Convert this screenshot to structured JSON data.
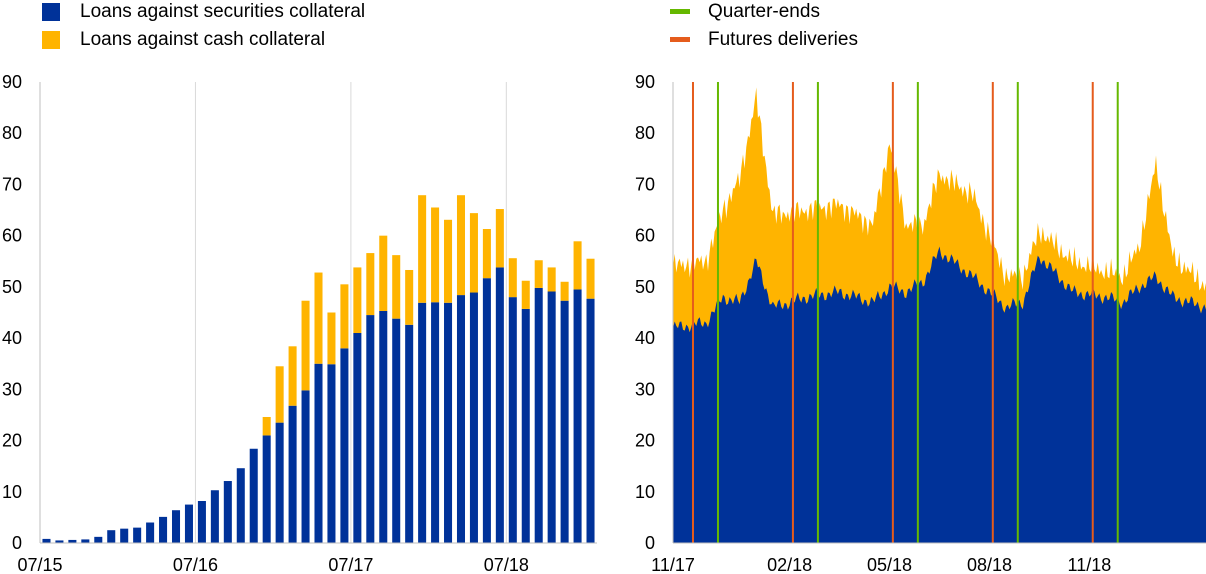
{
  "colors": {
    "securities": "#003299",
    "cash": "#ffb400",
    "quarter_end": "#65b800",
    "futures": "#e55c1c",
    "grid": "#d9d9d9"
  },
  "legend_left": [
    {
      "label": "Loans against securities collateral",
      "color": "#003299"
    },
    {
      "label": "Loans against cash collateral",
      "color": "#ffb400"
    }
  ],
  "legend_right": [
    {
      "label": "Quarter-ends",
      "color": "#65b800"
    },
    {
      "label": "Futures deliveries",
      "color": "#e55c1c"
    }
  ],
  "chart_data": [
    {
      "type": "bar",
      "stacked": true,
      "ylim": [
        0,
        90
      ],
      "yticks": [
        0,
        10,
        20,
        30,
        40,
        50,
        60,
        70,
        80,
        90
      ],
      "xticks": [
        {
          "label": "07/15",
          "index": 0
        },
        {
          "label": "07/16",
          "index": 12
        },
        {
          "label": "07/17",
          "index": 24
        },
        {
          "label": "07/18",
          "index": 36
        }
      ],
      "grid": "vertical",
      "x_start": "07/15",
      "x_step": "month",
      "series": [
        {
          "name": "Loans against securities collateral",
          "values": [
            0.8,
            0.5,
            0.6,
            0.7,
            1.2,
            2.5,
            2.8,
            3.0,
            4.0,
            5.1,
            6.4,
            7.5,
            8.2,
            10.3,
            12.1,
            14.6,
            18.4,
            21.0,
            23.5,
            26.8,
            29.8,
            35.0,
            34.9,
            38.0,
            41.0,
            44.5,
            45.3,
            43.8,
            42.6,
            46.9,
            47.0,
            46.9,
            48.4,
            48.9,
            51.7,
            53.8,
            48.0,
            45.7,
            49.8,
            49.1,
            47.3,
            49.5,
            47.7
          ]
        },
        {
          "name": "Loans against cash collateral",
          "values": [
            0,
            0,
            0,
            0,
            0,
            0,
            0,
            0,
            0,
            0,
            0,
            0,
            0,
            0,
            0,
            0,
            0,
            3.6,
            11.0,
            11.6,
            17.5,
            17.8,
            10.1,
            12.5,
            12.8,
            12.1,
            14.7,
            12.4,
            10.7,
            21.0,
            18.5,
            16.2,
            19.5,
            15.5,
            9.6,
            11.4,
            7.6,
            5.5,
            5.4,
            4.7,
            3.7,
            9.4,
            7.8
          ]
        }
      ]
    },
    {
      "type": "area",
      "stacked": true,
      "ylim": [
        0,
        90
      ],
      "yticks": [
        0,
        10,
        20,
        30,
        40,
        50,
        60,
        70,
        80,
        90
      ],
      "xticks": [
        "11/17",
        "02/18",
        "05/18",
        "08/18",
        "11/18"
      ],
      "x_range": [
        "11/17",
        "03/19"
      ],
      "series": [
        {
          "name": "Loans against securities collateral",
          "x": [
            "11/17",
            "12/17",
            "12/17",
            "01/18",
            "01/18",
            "02/18",
            "03/18",
            "04/18",
            "05/18",
            "05/18",
            "06/18",
            "06/18",
            "07/18",
            "08/18",
            "09/18",
            "09/18",
            "10/18",
            "11/18",
            "12/18",
            "12/18",
            "01/19",
            "01/19",
            "02/19",
            "03/19"
          ],
          "values": [
            42,
            43,
            48,
            47,
            55,
            46,
            48,
            49,
            47,
            50,
            49,
            51,
            57,
            52,
            46,
            47,
            56,
            49,
            48,
            47,
            50,
            52,
            48,
            46
          ]
        },
        {
          "name": "Loans against cash collateral",
          "x": [
            "11/17",
            "12/17",
            "12/17",
            "01/18",
            "01/18",
            "02/18",
            "03/18",
            "04/18",
            "05/18",
            "05/18",
            "06/18",
            "06/18",
            "07/18",
            "08/18",
            "09/18",
            "09/18",
            "10/18",
            "11/18",
            "12/18",
            "12/18",
            "01/19",
            "01/19",
            "02/19",
            "03/19"
          ],
          "values": [
            12,
            12,
            17,
            24,
            32,
            18,
            17,
            17,
            15,
            28,
            13,
            11,
            15,
            16,
            6,
            5,
            5,
            6,
            5,
            5,
            8,
            22,
            8,
            4
          ]
        },
        {
          "name": "Quarter-ends",
          "dates": [
            "12/17",
            "03/18",
            "06/18",
            "09/18",
            "12/18"
          ]
        },
        {
          "name": "Futures deliveries",
          "dates": [
            "12/17",
            "03/18",
            "06/18",
            "09/18",
            "12/18"
          ]
        }
      ]
    }
  ]
}
